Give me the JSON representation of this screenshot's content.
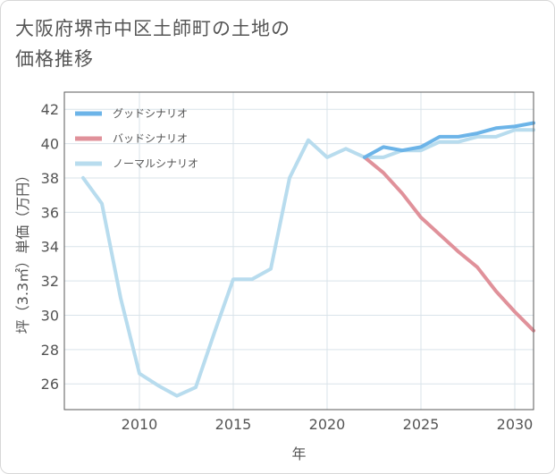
{
  "chart_data": {
    "type": "line",
    "title": "大阪府堺市中区土師町の土地の価格推移",
    "xlabel": "年",
    "ylabel": "坪（3.3㎡）単価（万円）",
    "xlim": [
      2006.0,
      2031.0
    ],
    "ylim": [
      24.5,
      43.0
    ],
    "x_ticks": [
      2010,
      2015,
      2020,
      2025,
      2030
    ],
    "y_ticks": [
      26,
      28,
      30,
      32,
      34,
      36,
      38,
      40,
      42
    ],
    "grid": true,
    "legend_position": "top-left",
    "series": [
      {
        "name": "グッドシナリオ",
        "color": "#6cb4e8",
        "x": [
          2022,
          2023,
          2024,
          2025,
          2026,
          2027,
          2028,
          2029,
          2030,
          2031
        ],
        "values": [
          39.2,
          39.8,
          39.6,
          39.8,
          40.4,
          40.4,
          40.6,
          40.9,
          41.0,
          41.2
        ]
      },
      {
        "name": "バッドシナリオ",
        "color": "#e0919a",
        "x": [
          2022,
          2023,
          2024,
          2025,
          2026,
          2027,
          2028,
          2029,
          2030,
          2031
        ],
        "values": [
          39.2,
          38.3,
          37.1,
          35.7,
          34.7,
          33.7,
          32.8,
          31.4,
          30.2,
          29.1
        ]
      },
      {
        "name": "ノーマルシナリオ",
        "color": "#b8dcee",
        "x": [
          2007,
          2008,
          2009,
          2010,
          2011,
          2012,
          2013,
          2014,
          2015,
          2016,
          2017,
          2018,
          2019,
          2020,
          2021,
          2022,
          2023,
          2024,
          2025,
          2026,
          2027,
          2028,
          2029,
          2030,
          2031
        ],
        "values": [
          38.0,
          36.5,
          31.0,
          26.6,
          25.9,
          25.3,
          25.8,
          29.0,
          32.1,
          32.1,
          32.7,
          38.0,
          40.2,
          39.2,
          39.7,
          39.2,
          39.2,
          39.6,
          39.6,
          40.1,
          40.1,
          40.4,
          40.4,
          40.8,
          40.8
        ]
      }
    ]
  }
}
